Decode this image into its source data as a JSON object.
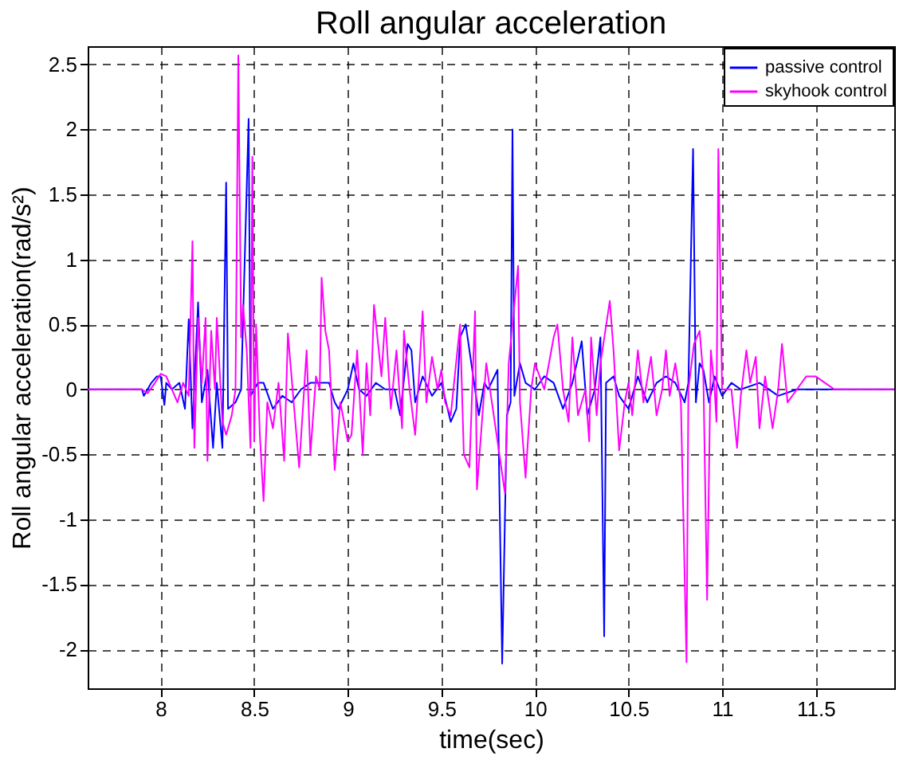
{
  "chart_data": {
    "type": "line",
    "title": "Roll angular acceleration",
    "xlabel": "time(sec)",
    "ylabel": "Roll angular acceleration(rad/s²)",
    "xlim": [
      7.61,
      11.92
    ],
    "ylim": [
      -2.3,
      2.64
    ],
    "xticks": [
      8,
      8.5,
      9,
      9.5,
      10,
      10.5,
      11,
      11.5
    ],
    "yticks": [
      -2,
      -1.5,
      -1,
      -0.5,
      0,
      0.5,
      1,
      1.5,
      2,
      2.5
    ],
    "grid": true,
    "legend": "top right",
    "line_style": "solid",
    "marker": "none",
    "series": [
      {
        "name": "passive control",
        "color": "#0000ff",
        "x": [
          7.61,
          7.9,
          7.91,
          7.95,
          7.98,
          8.0,
          8.02,
          8.03,
          8.06,
          8.1,
          8.13,
          8.15,
          8.17,
          8.2,
          8.22,
          8.25,
          8.28,
          8.3,
          8.33,
          8.35,
          8.36,
          8.4,
          8.43,
          8.47,
          8.48,
          8.52,
          8.55,
          8.6,
          8.65,
          8.7,
          8.75,
          8.8,
          8.85,
          8.9,
          8.93,
          8.95,
          9.0,
          9.03,
          9.06,
          9.1,
          9.15,
          9.2,
          9.25,
          9.28,
          9.32,
          9.34,
          9.36,
          9.4,
          9.45,
          9.5,
          9.55,
          9.58,
          9.6,
          9.63,
          9.67,
          9.7,
          9.73,
          9.75,
          9.8,
          9.825,
          9.85,
          9.87,
          9.88,
          9.89,
          9.92,
          9.95,
          10.0,
          10.05,
          10.1,
          10.15,
          10.2,
          10.25,
          10.28,
          10.32,
          10.35,
          10.37,
          10.38,
          10.42,
          10.45,
          10.5,
          10.55,
          10.6,
          10.65,
          10.7,
          10.75,
          10.8,
          10.82,
          10.845,
          10.86,
          10.88,
          10.9,
          10.93,
          10.96,
          11.0,
          11.05,
          11.1,
          11.2,
          11.3,
          11.4,
          11.5,
          11.92
        ],
        "values": [
          0,
          0,
          -0.05,
          0.05,
          0.1,
          0.1,
          -0.12,
          0.05,
          0,
          0.05,
          -0.15,
          0.54,
          -0.3,
          0.67,
          -0.1,
          0.15,
          -0.45,
          0.05,
          -0.45,
          1.59,
          -0.15,
          -0.1,
          0,
          2.08,
          -0.05,
          0.05,
          0.05,
          -0.15,
          -0.05,
          -0.1,
          0,
          0.05,
          0.05,
          0.05,
          -0.1,
          -0.15,
          0,
          0.2,
          0,
          -0.05,
          0.05,
          0,
          0,
          -0.2,
          0.35,
          0.3,
          -0.1,
          0.1,
          -0.05,
          0.05,
          -0.25,
          -0.15,
          0.4,
          0.5,
          0.1,
          -0.2,
          0.05,
          0,
          0.15,
          -2.11,
          -0.2,
          -0.1,
          2.0,
          -0.05,
          0.2,
          0.05,
          0,
          0.1,
          0.05,
          -0.15,
          0.05,
          0.37,
          -0.2,
          0,
          0.4,
          -1.9,
          0.05,
          0.1,
          -0.05,
          -0.15,
          0.1,
          -0.1,
          0.05,
          0.1,
          0.05,
          -0.1,
          0.05,
          1.85,
          -0.1,
          0.2,
          0.15,
          -0.1,
          0.1,
          -0.05,
          0.05,
          0,
          0.05,
          -0.05,
          0,
          0,
          0
        ]
      },
      {
        "name": "skyhook control",
        "color": "#ff00ff",
        "x": [
          7.61,
          7.9,
          7.93,
          7.97,
          8.0,
          8.03,
          8.06,
          8.09,
          8.12,
          8.15,
          8.17,
          8.18,
          8.2,
          8.22,
          8.24,
          8.25,
          8.27,
          8.29,
          8.3,
          8.33,
          8.35,
          8.38,
          8.4,
          8.415,
          8.43,
          8.44,
          8.46,
          8.48,
          8.49,
          8.5,
          8.51,
          8.53,
          8.55,
          8.57,
          8.6,
          8.63,
          8.66,
          8.68,
          8.74,
          8.78,
          8.8,
          8.83,
          8.85,
          8.86,
          8.88,
          8.9,
          8.93,
          8.96,
          9.0,
          9.02,
          9.05,
          9.08,
          9.1,
          9.12,
          9.14,
          9.18,
          9.2,
          9.23,
          9.26,
          9.29,
          9.3,
          9.33,
          9.36,
          9.38,
          9.4,
          9.42,
          9.45,
          9.48,
          9.5,
          9.52,
          9.55,
          9.6,
          9.62,
          9.65,
          9.68,
          9.69,
          9.74,
          9.77,
          9.84,
          9.86,
          9.91,
          9.92,
          9.95,
          9.98,
          10.0,
          10.05,
          10.1,
          10.12,
          10.15,
          10.18,
          10.2,
          10.23,
          10.27,
          10.29,
          10.3,
          10.33,
          10.35,
          10.4,
          10.42,
          10.45,
          10.48,
          10.5,
          10.52,
          10.55,
          10.58,
          10.62,
          10.65,
          10.68,
          10.7,
          10.72,
          10.75,
          10.78,
          10.81,
          10.82,
          10.85,
          10.88,
          10.9,
          10.92,
          10.94,
          10.96,
          10.97,
          10.98,
          11.0,
          11.05,
          11.08,
          11.1,
          11.13,
          11.15,
          11.18,
          11.2,
          11.23,
          11.27,
          11.3,
          11.32,
          11.35,
          11.4,
          11.45,
          11.5,
          11.55,
          11.6,
          11.92
        ],
        "values": [
          0,
          0,
          -0.03,
          0.05,
          0.12,
          0.1,
          0,
          -0.1,
          0.05,
          -0.05,
          1.14,
          -0.45,
          0.55,
          0.05,
          0.55,
          -0.55,
          0.45,
          0,
          0.55,
          -0.25,
          -0.35,
          -0.2,
          0,
          2.57,
          0.4,
          0.65,
          0.3,
          -0.45,
          1.79,
          -0.4,
          0.5,
          -0.35,
          -0.86,
          -0.1,
          -0.3,
          0.05,
          -0.55,
          0.43,
          -0.6,
          0.3,
          -0.5,
          0.1,
          0,
          0.86,
          0.45,
          0.3,
          -0.62,
          -0.1,
          -0.4,
          -0.35,
          0.3,
          -0.5,
          0.2,
          -0.2,
          0.65,
          0.1,
          0.55,
          -0.15,
          0.3,
          -0.3,
          0.45,
          0,
          -0.35,
          0.1,
          0.6,
          -0.1,
          0.25,
          0,
          0.15,
          -0.1,
          -0.2,
          0.5,
          -0.5,
          -0.6,
          0.6,
          -0.77,
          0.2,
          -0.1,
          -0.8,
          0.2,
          0.95,
          -0.1,
          -0.68,
          0,
          0.2,
          0,
          0.4,
          0.5,
          0,
          -0.25,
          0.4,
          -0.2,
          0,
          -0.4,
          0.4,
          -0.2,
          0.2,
          0.68,
          0.3,
          -0.47,
          -0.1,
          0.05,
          -0.2,
          0.3,
          -0.1,
          0.25,
          -0.2,
          0,
          0.3,
          -0.05,
          0.2,
          -0.1,
          -2.1,
          0,
          0.35,
          0.45,
          0.1,
          -1.62,
          0.3,
          0,
          -0.25,
          1.85,
          0,
          0,
          -0.45,
          -0.05,
          0.3,
          0.05,
          0.25,
          -0.3,
          0.1,
          -0.3,
          0,
          0.35,
          -0.1,
          0,
          0.1,
          0.1,
          0.05,
          0,
          0
        ]
      }
    ]
  }
}
